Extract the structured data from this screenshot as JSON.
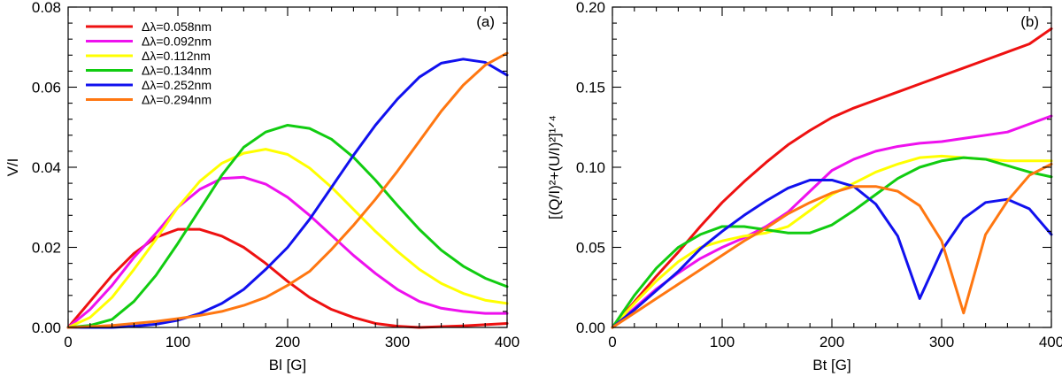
{
  "chart_data": [
    {
      "type": "line",
      "panel_label": "(a)",
      "xlabel": "Bl [G]",
      "ylabel": "V/I",
      "xlim": [
        0,
        400
      ],
      "ylim": [
        0,
        0.08
      ],
      "xticks": [
        0,
        100,
        200,
        300,
        400
      ],
      "xtick_labels": [
        "0",
        "100",
        "200",
        "300",
        "400"
      ],
      "yticks": [
        0,
        0.02,
        0.04,
        0.06,
        0.08
      ],
      "ytick_labels": [
        "0.00",
        "0.02",
        "0.04",
        "0.06",
        "0.08"
      ],
      "grid": false,
      "legend_position": "top-left",
      "x": [
        0,
        20,
        40,
        60,
        80,
        100,
        120,
        140,
        160,
        180,
        200,
        220,
        240,
        260,
        280,
        300,
        320,
        340,
        360,
        380,
        400
      ],
      "series": [
        {
          "name": "Δλ=0.058nm",
          "color": "#ee1111",
          "values": [
            0.0,
            0.0065,
            0.013,
            0.0185,
            0.0225,
            0.0245,
            0.0245,
            0.0228,
            0.02,
            0.016,
            0.0115,
            0.0075,
            0.0045,
            0.0025,
            0.001,
            0.0003,
            0.0,
            0.0002,
            0.0004,
            0.0007,
            0.001
          ]
        },
        {
          "name": "Δλ=0.092nm",
          "color": "#ee11ee",
          "values": [
            0.0,
            0.0045,
            0.0105,
            0.0175,
            0.0235,
            0.03,
            0.0345,
            0.0372,
            0.0375,
            0.0358,
            0.0325,
            0.028,
            0.023,
            0.018,
            0.0135,
            0.0095,
            0.0065,
            0.0048,
            0.004,
            0.0035,
            0.0035
          ]
        },
        {
          "name": "Δλ=0.112nm",
          "color": "#ffff00",
          "values": [
            0.0,
            0.0025,
            0.0075,
            0.0145,
            0.022,
            0.03,
            0.0365,
            0.041,
            0.0435,
            0.0445,
            0.0432,
            0.0398,
            0.035,
            0.0295,
            0.024,
            0.019,
            0.0145,
            0.011,
            0.0085,
            0.0068,
            0.006
          ]
        },
        {
          "name": "Δλ=0.134nm",
          "color": "#11cc11",
          "values": [
            0.0,
            0.0005,
            0.002,
            0.0065,
            0.013,
            0.021,
            0.0295,
            0.038,
            0.045,
            0.0488,
            0.0505,
            0.0497,
            0.047,
            0.0425,
            0.0368,
            0.0305,
            0.0245,
            0.0193,
            0.0153,
            0.0123,
            0.0102
          ]
        },
        {
          "name": "Δλ=0.252nm",
          "color": "#1111ee",
          "values": [
            0.0,
            0.0,
            0.0,
            0.0003,
            0.0008,
            0.0018,
            0.0035,
            0.006,
            0.0095,
            0.0145,
            0.02,
            0.027,
            0.035,
            0.043,
            0.0505,
            0.057,
            0.0625,
            0.066,
            0.067,
            0.0662,
            0.063
          ]
        },
        {
          "name": "Δλ=0.294nm",
          "color": "#ff7711",
          "values": [
            0.0,
            0.0002,
            0.0005,
            0.001,
            0.0015,
            0.0022,
            0.003,
            0.004,
            0.0055,
            0.0075,
            0.0105,
            0.014,
            0.0195,
            0.0255,
            0.032,
            0.039,
            0.0465,
            0.054,
            0.0605,
            0.0655,
            0.0685
          ]
        }
      ]
    },
    {
      "type": "line",
      "panel_label": "(b)",
      "xlabel": "Bt [G]",
      "ylabel": "[(Q/I)²+(U/I)²]¹ᐟ⁴",
      "xlim": [
        0,
        400
      ],
      "ylim": [
        0,
        0.2
      ],
      "xticks": [
        0,
        100,
        200,
        300,
        400
      ],
      "xtick_labels": [
        "0",
        "100",
        "200",
        "300",
        "400"
      ],
      "yticks": [
        0,
        0.05,
        0.1,
        0.15,
        0.2
      ],
      "ytick_labels": [
        "0.00",
        "0.05",
        "0.10",
        "0.15",
        "0.20"
      ],
      "grid": false,
      "x": [
        0,
        20,
        40,
        60,
        80,
        100,
        120,
        140,
        160,
        180,
        200,
        220,
        240,
        260,
        280,
        300,
        320,
        340,
        360,
        380,
        400
      ],
      "series": [
        {
          "name": "Δλ=0.058nm",
          "color": "#ee1111",
          "values": [
            0.0,
            0.016,
            0.032,
            0.047,
            0.063,
            0.078,
            0.091,
            0.103,
            0.114,
            0.123,
            0.131,
            0.137,
            0.142,
            0.147,
            0.152,
            0.157,
            0.162,
            0.167,
            0.172,
            0.177,
            0.1865
          ]
        },
        {
          "name": "Δλ=0.092nm",
          "color": "#ee11ee",
          "values": [
            0.0,
            0.012,
            0.024,
            0.034,
            0.043,
            0.05,
            0.056,
            0.063,
            0.072,
            0.085,
            0.098,
            0.105,
            0.11,
            0.113,
            0.115,
            0.116,
            0.118,
            0.12,
            0.122,
            0.127,
            0.132
          ]
        },
        {
          "name": "Δλ=0.112nm",
          "color": "#ffff00",
          "values": [
            0.0,
            0.015,
            0.029,
            0.041,
            0.05,
            0.054,
            0.057,
            0.059,
            0.063,
            0.073,
            0.083,
            0.09,
            0.097,
            0.102,
            0.106,
            0.107,
            0.106,
            0.105,
            0.104,
            0.104,
            0.104
          ]
        },
        {
          "name": "Δλ=0.134nm",
          "color": "#11cc11",
          "values": [
            0.0,
            0.02,
            0.037,
            0.05,
            0.058,
            0.063,
            0.063,
            0.061,
            0.059,
            0.059,
            0.064,
            0.073,
            0.083,
            0.093,
            0.1,
            0.104,
            0.106,
            0.105,
            0.101,
            0.097,
            0.094
          ]
        },
        {
          "name": "Δλ=0.252nm",
          "color": "#1111ee",
          "values": [
            0.0,
            0.011,
            0.023,
            0.035,
            0.049,
            0.06,
            0.07,
            0.079,
            0.087,
            0.092,
            0.092,
            0.088,
            0.077,
            0.057,
            0.018,
            0.048,
            0.068,
            0.078,
            0.08,
            0.074,
            0.058
          ]
        },
        {
          "name": "Δλ=0.294nm",
          "color": "#ff7711",
          "values": [
            0.0,
            0.009,
            0.018,
            0.027,
            0.036,
            0.045,
            0.054,
            0.062,
            0.071,
            0.078,
            0.084,
            0.088,
            0.088,
            0.085,
            0.076,
            0.054,
            0.009,
            0.058,
            0.079,
            0.095,
            0.102
          ]
        }
      ]
    }
  ]
}
